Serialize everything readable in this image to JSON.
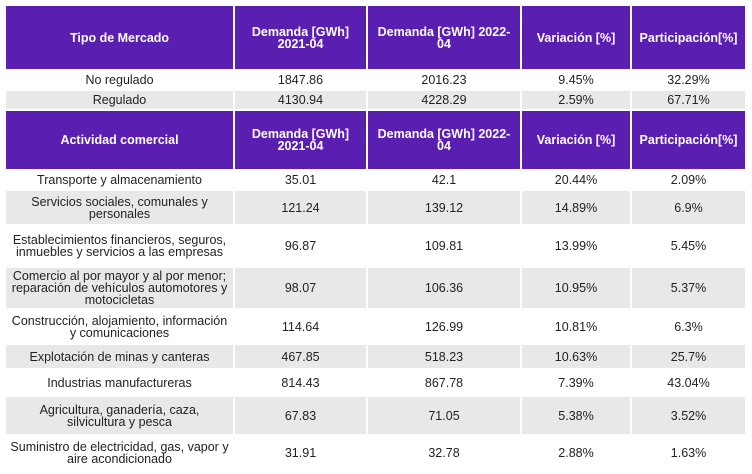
{
  "header1": {
    "col1": "Tipo de Mercado",
    "col2": "Demanda [GWh] 2021-04",
    "col3": "Demanda [GWh] 2022-04",
    "col4": "Variación [%]",
    "col5": "Participación[%]"
  },
  "market_rows": [
    {
      "name": "No regulado",
      "d2021": "1847.86",
      "d2022": "2016.23",
      "var": "9.45%",
      "part": "32.29%"
    },
    {
      "name": "Regulado",
      "d2021": "4130.94",
      "d2022": "4228.29",
      "var": "2.59%",
      "part": "67.71%"
    }
  ],
  "header2": {
    "col1": "Actividad comercial",
    "col2": "Demanda [GWh] 2021-04",
    "col3": "Demanda [GWh] 2022-04",
    "col4": "Variación [%]",
    "col5": "Participación[%]"
  },
  "activity_rows": [
    {
      "name": "Transporte y almacenamiento",
      "d2021": "35.01",
      "d2022": "42.1",
      "var": "20.44%",
      "part": "2.09%"
    },
    {
      "name": "Servicios sociales, comunales y personales",
      "d2021": "121.24",
      "d2022": "139.12",
      "var": "14.89%",
      "part": "6.9%"
    },
    {
      "name": "Establecimientos financieros, seguros, inmuebles y servicios a las empresas",
      "d2021": "96.87",
      "d2022": "109.81",
      "var": "13.99%",
      "part": "5.45%"
    },
    {
      "name": "Comercio al por mayor y al por menor; reparación de vehículos automotores y motocicletas",
      "d2021": "98.07",
      "d2022": "106.36",
      "var": "10.95%",
      "part": "5.37%"
    },
    {
      "name": "Construcción, alojamiento, información y comunicaciones",
      "d2021": "114.64",
      "d2022": "126.99",
      "var": "10.81%",
      "part": "6.3%"
    },
    {
      "name": "Explotación de minas y canteras",
      "d2021": "467.85",
      "d2022": "518.23",
      "var": "10.63%",
      "part": "25.7%"
    },
    {
      "name": "Industrias manufactureras",
      "d2021": "814.43",
      "d2022": "867.78",
      "var": "7.39%",
      "part": "43.04%"
    },
    {
      "name": "Agricultura, ganadería, caza, silvicultura y pesca",
      "d2021": "67.83",
      "d2022": "71.05",
      "var": "5.38%",
      "part": "3.52%"
    },
    {
      "name": "Suministro de electricidad, gas, vapor y aire acondicionado",
      "d2021": "31.91",
      "d2022": "32.78",
      "var": "2.88%",
      "part": "1.63%"
    }
  ]
}
